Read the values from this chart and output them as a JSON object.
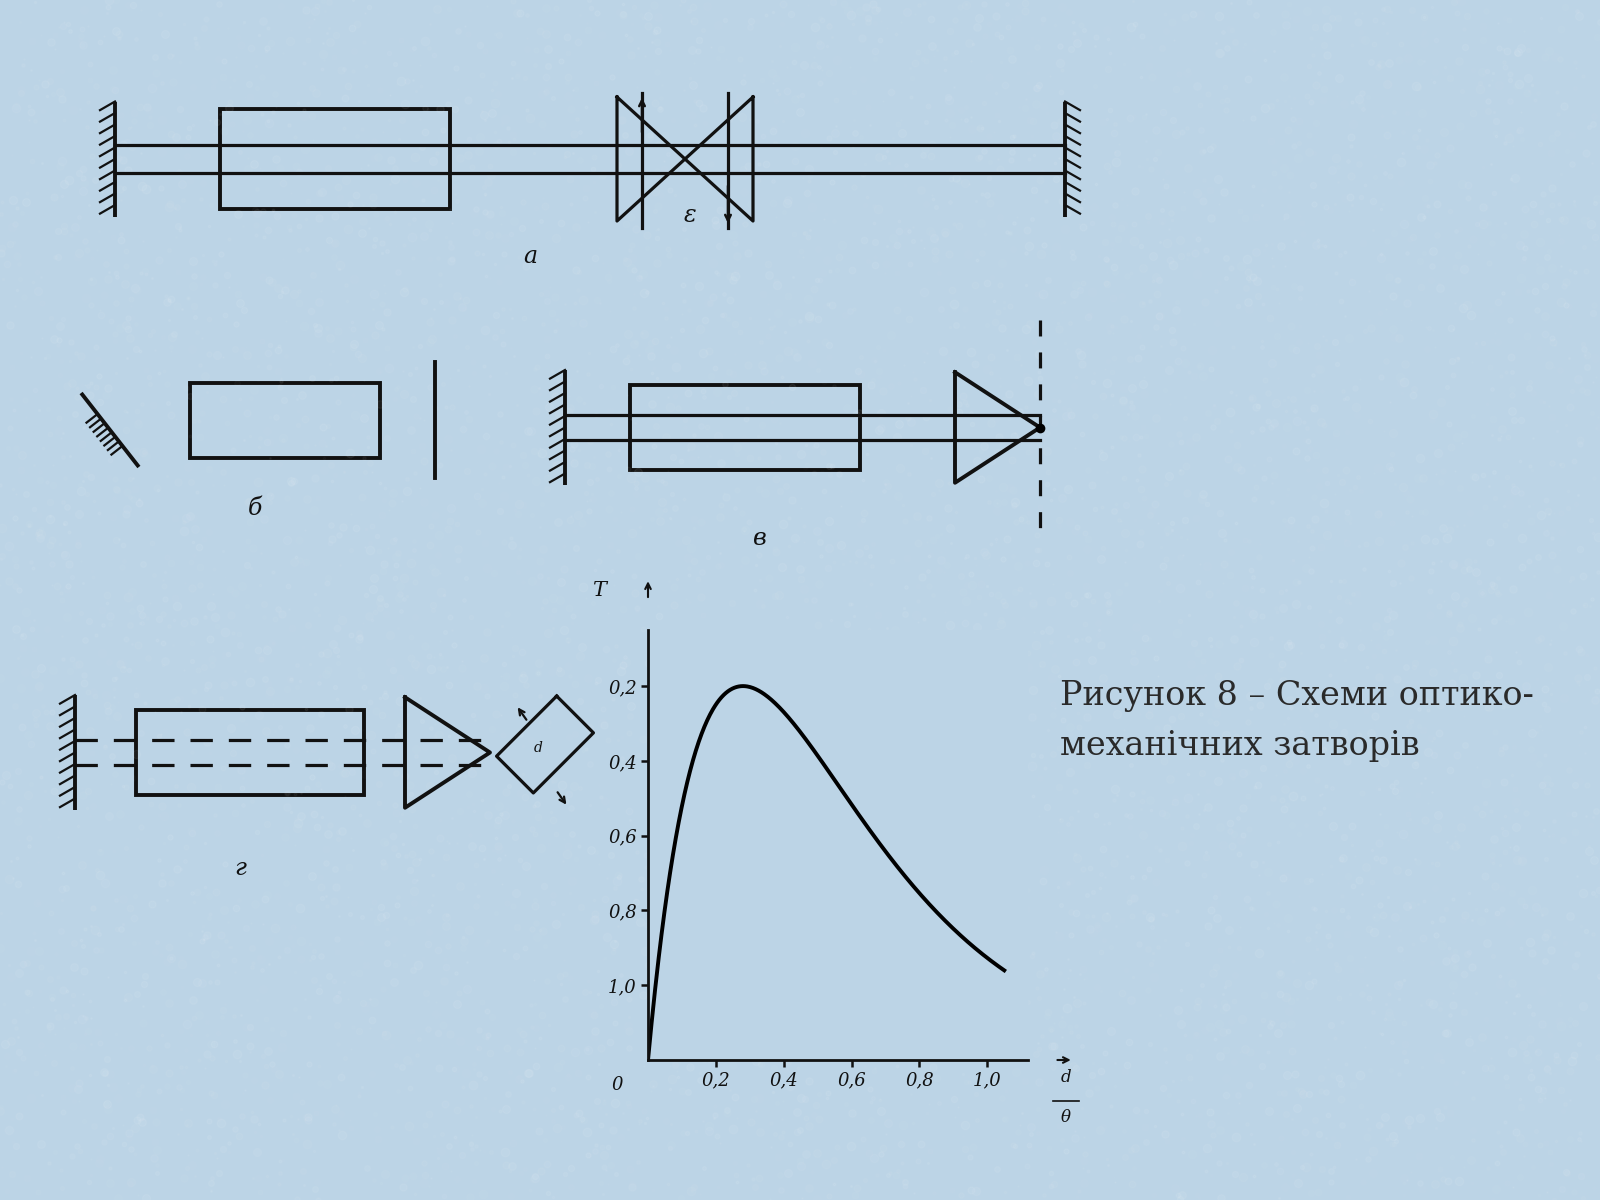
{
  "bg_color": "#bcd4e6",
  "bg_noise_alpha": 0.15,
  "line_color": "#111111",
  "title_line1": "Рисунок 8 – Схеми оптико-",
  "title_line2": "механічних затворів",
  "title_fontsize": 24,
  "label_a": "а",
  "label_b": "б",
  "label_v": "в",
  "label_g": "г",
  "graph_yticks_labels": [
    "1,0",
    "0,8",
    "0,6",
    "0,4",
    "0,2"
  ],
  "graph_xticks_labels": [
    "0,2",
    "0,4",
    "0,6",
    "0,8",
    "1,0"
  ],
  "graph_T_label": "T",
  "graph_0_label": "0",
  "graph_d_label": "d",
  "graph_theta_label": "θ"
}
